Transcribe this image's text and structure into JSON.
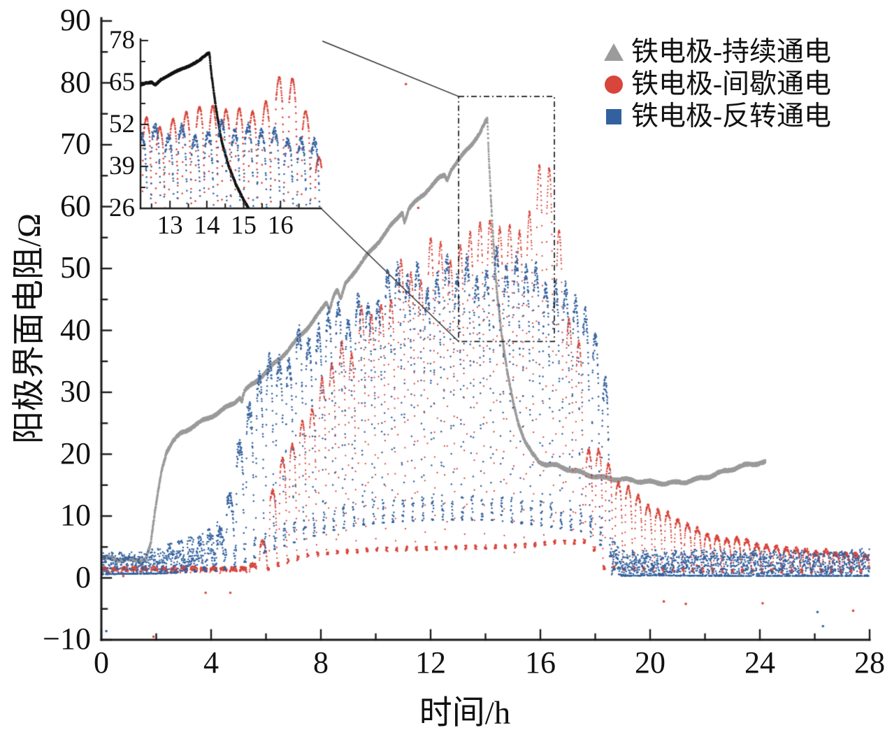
{
  "chart_data": {
    "type": "line",
    "title": "",
    "xlabel": "时间/h",
    "ylabel": "阳极界面电阻/Ω",
    "xlim": [
      0,
      28
    ],
    "ylim": [
      -10,
      90
    ],
    "grid": false,
    "x_ticks": {
      "major": [
        0,
        4,
        8,
        12,
        16,
        20,
        24,
        28
      ],
      "minor": [
        2,
        6,
        10,
        14,
        18,
        22,
        26
      ],
      "labels": [
        "0",
        "4",
        "8",
        "12",
        "16",
        "20",
        "24",
        "28"
      ]
    },
    "y_ticks": {
      "major": [
        -10,
        0,
        10,
        20,
        30,
        40,
        50,
        60,
        70,
        80,
        90
      ],
      "minor": [
        -5,
        5,
        15,
        25,
        35,
        45,
        55,
        65,
        75,
        85
      ],
      "labels": [
        "−10",
        "0",
        "10",
        "20",
        "30",
        "40",
        "50",
        "60",
        "70",
        "80",
        "90"
      ]
    },
    "legend": {
      "position": "top-right",
      "items": [
        {
          "label": "铁电极-持续通电",
          "marker": "triangle",
          "color": "#9b9b9b"
        },
        {
          "label": "铁电极-间歇通电",
          "marker": "circle",
          "color": "#d8453a"
        },
        {
          "label": "铁电极-反转通电",
          "marker": "square",
          "color": "#33619f"
        }
      ]
    },
    "series": [
      {
        "name": "铁电极-持续通电",
        "color": "#9b9b9b",
        "render": "dotline",
        "anchors": [
          [
            0,
            3.25
          ],
          [
            0.5,
            3.05
          ],
          [
            1.0,
            2.9
          ],
          [
            1.45,
            2.75
          ],
          [
            1.62,
            3.2
          ],
          [
            1.8,
            5.5
          ],
          [
            2.0,
            12
          ],
          [
            2.2,
            17.5
          ],
          [
            2.38,
            20.5
          ],
          [
            2.6,
            22
          ],
          [
            2.9,
            23.3
          ],
          [
            3.3,
            24.4
          ],
          [
            3.8,
            25.6
          ],
          [
            4.3,
            26.8
          ],
          [
            4.8,
            28.2
          ],
          [
            5.05,
            29.2
          ],
          [
            5.12,
            28.6
          ],
          [
            5.22,
            30.2
          ],
          [
            5.6,
            31.6
          ],
          [
            6.0,
            33.3
          ],
          [
            6.5,
            35.4
          ],
          [
            7.0,
            37.8
          ],
          [
            7.5,
            40.4
          ],
          [
            7.95,
            42.8
          ],
          [
            8.2,
            44.5
          ],
          [
            8.32,
            43.4
          ],
          [
            8.45,
            45.6
          ],
          [
            8.6,
            46.6
          ],
          [
            8.72,
            44.9
          ],
          [
            8.9,
            47.5
          ],
          [
            9.2,
            49.4
          ],
          [
            9.6,
            51.6
          ],
          [
            10.0,
            53.8
          ],
          [
            10.4,
            56.0
          ],
          [
            10.8,
            58.2
          ],
          [
            10.97,
            59.2
          ],
          [
            11.05,
            57.5
          ],
          [
            11.2,
            59.6
          ],
          [
            11.6,
            61.4
          ],
          [
            12.0,
            63.2
          ],
          [
            12.35,
            64.7
          ],
          [
            12.5,
            65.1
          ],
          [
            12.6,
            64.4
          ],
          [
            12.75,
            66.0
          ],
          [
            13.1,
            67.9
          ],
          [
            13.5,
            70.2
          ],
          [
            13.8,
            71.9
          ],
          [
            14.0,
            73.6
          ],
          [
            14.07,
            74.0
          ],
          [
            14.12,
            68.0
          ],
          [
            14.25,
            57.0
          ],
          [
            14.4,
            47.0
          ],
          [
            14.6,
            39.0
          ],
          [
            14.8,
            33.0
          ],
          [
            15.0,
            28.5
          ],
          [
            15.2,
            25.0
          ],
          [
            15.45,
            22.0
          ],
          [
            15.7,
            20.0
          ],
          [
            15.95,
            18.8
          ],
          [
            16.2,
            18.4
          ],
          [
            16.6,
            18.1
          ],
          [
            17.0,
            17.6
          ],
          [
            17.4,
            17.1
          ],
          [
            17.8,
            16.6
          ],
          [
            18.2,
            16.2
          ],
          [
            18.7,
            16.0
          ],
          [
            19.2,
            15.8
          ],
          [
            19.7,
            15.6
          ],
          [
            20.2,
            15.4
          ],
          [
            20.7,
            15.3
          ],
          [
            21.2,
            15.5
          ],
          [
            21.7,
            15.9
          ],
          [
            22.2,
            16.5
          ],
          [
            22.7,
            17.2
          ],
          [
            23.2,
            17.9
          ],
          [
            23.6,
            18.3
          ],
          [
            24.0,
            18.6
          ],
          [
            24.2,
            18.7
          ]
        ]
      },
      {
        "name": "铁电极-间歇通电",
        "color": "#d8453a",
        "render": "cycles",
        "period": 0.36,
        "phase": 0,
        "shape": "red",
        "band": 0.45,
        "peaks": [
          [
            0,
            1.5
          ],
          [
            5.2,
            1.5
          ],
          [
            5.6,
            2.2
          ],
          [
            5.9,
            5
          ],
          [
            6.1,
            9
          ],
          [
            6.3,
            14
          ],
          [
            6.5,
            17
          ],
          [
            6.9,
            21
          ],
          [
            7.3,
            24
          ],
          [
            7.7,
            28
          ],
          [
            8.1,
            31
          ],
          [
            8.5,
            34
          ],
          [
            8.9,
            37
          ],
          [
            9.3,
            39.5
          ],
          [
            9.7,
            42
          ],
          [
            10.1,
            44.5
          ],
          [
            10.5,
            46.5
          ],
          [
            10.9,
            48.5
          ],
          [
            11.3,
            50.2
          ],
          [
            11.7,
            51.5
          ],
          [
            12.1,
            52.5
          ],
          [
            12.5,
            53.5
          ],
          [
            12.9,
            54.5
          ],
          [
            13.3,
            55.3
          ],
          [
            13.7,
            56.2
          ],
          [
            14.1,
            57
          ],
          [
            14.5,
            57.8
          ],
          [
            14.9,
            58.5
          ],
          [
            15.3,
            59.5
          ],
          [
            15.7,
            60.8
          ],
          [
            16.0,
            61.8
          ],
          [
            16.3,
            62.8
          ],
          [
            16.55,
            60
          ],
          [
            16.75,
            52
          ],
          [
            17.05,
            45
          ],
          [
            17.4,
            41.5
          ],
          [
            17.6,
            38
          ],
          [
            17.8,
            22
          ],
          [
            18.1,
            20
          ],
          [
            18.45,
            18.5
          ],
          [
            18.8,
            16.5
          ],
          [
            19.15,
            14.8
          ],
          [
            19.5,
            13.5
          ],
          [
            20.1,
            11.4
          ],
          [
            20.8,
            9.6
          ],
          [
            21.5,
            8.3
          ],
          [
            22.2,
            7.3
          ],
          [
            22.9,
            6.5
          ],
          [
            23.6,
            5.9
          ],
          [
            24.3,
            5.3
          ],
          [
            25.0,
            4.9
          ],
          [
            25.7,
            4.5
          ],
          [
            26.4,
            4.2
          ],
          [
            27.1,
            3.9
          ],
          [
            27.8,
            3.7
          ],
          [
            28,
            3.6
          ]
        ],
        "valleys": [
          [
            0,
            0.85
          ],
          [
            5.2,
            0.9
          ],
          [
            6.0,
            1.5
          ],
          [
            6.6,
            2.4
          ],
          [
            7.2,
            3.2
          ],
          [
            8,
            3.6
          ],
          [
            10,
            4
          ],
          [
            14,
            4.2
          ],
          [
            16,
            4.6
          ],
          [
            17,
            5.2
          ],
          [
            17.7,
            5.5
          ],
          [
            18.1,
            1.4
          ],
          [
            20,
            1.2
          ],
          [
            24,
            1.1
          ],
          [
            28,
            1.0
          ]
        ]
      },
      {
        "name": "铁电极-反转通电",
        "color": "#33619f",
        "render": "cycles",
        "period": 0.36,
        "phase": 0.13,
        "shape": "blue",
        "band": 3.2,
        "peaks": [
          [
            0,
            1.7
          ],
          [
            1.2,
            1.6
          ],
          [
            2.0,
            2.2
          ],
          [
            2.4,
            2.9
          ],
          [
            2.8,
            3.5
          ],
          [
            3.2,
            4.2
          ],
          [
            3.6,
            4.9
          ],
          [
            4.0,
            5.8
          ],
          [
            4.3,
            7.5
          ],
          [
            4.55,
            11
          ],
          [
            4.8,
            16
          ],
          [
            5.05,
            21
          ],
          [
            5.3,
            26
          ],
          [
            5.55,
            29.5
          ],
          [
            5.8,
            32
          ],
          [
            6.1,
            34
          ],
          [
            6.45,
            35.8
          ],
          [
            6.8,
            37.2
          ],
          [
            7.15,
            38.5
          ],
          [
            7.5,
            40
          ],
          [
            7.85,
            41.2
          ],
          [
            8.2,
            42.3
          ],
          [
            8.55,
            43.2
          ],
          [
            8.9,
            44
          ],
          [
            9.25,
            44.8
          ],
          [
            9.6,
            45.5
          ],
          [
            9.95,
            46.2
          ],
          [
            10.3,
            47
          ],
          [
            10.65,
            47.8
          ],
          [
            11.0,
            48.5
          ],
          [
            11.35,
            49
          ],
          [
            11.7,
            49.5
          ],
          [
            12.05,
            50
          ],
          [
            12.4,
            50.3
          ],
          [
            12.75,
            50.6
          ],
          [
            13.1,
            50.9
          ],
          [
            13.45,
            51
          ],
          [
            13.8,
            51.2
          ],
          [
            14.15,
            51.6
          ],
          [
            14.5,
            52.3
          ],
          [
            14.85,
            51.5
          ],
          [
            15.2,
            52
          ],
          [
            15.55,
            52
          ],
          [
            15.9,
            50.5
          ],
          [
            16.25,
            49
          ],
          [
            16.6,
            47.5
          ],
          [
            16.95,
            46
          ],
          [
            17.3,
            44.5
          ],
          [
            17.65,
            42.5
          ],
          [
            18.0,
            40
          ],
          [
            18.25,
            37
          ],
          [
            18.45,
            30
          ],
          [
            18.6,
            15
          ],
          [
            18.75,
            4
          ],
          [
            19.0,
            2.0
          ],
          [
            19.5,
            1.9
          ],
          [
            20,
            2.0
          ],
          [
            21,
            1.9
          ],
          [
            22,
            2.1
          ],
          [
            23,
            1.9
          ],
          [
            24,
            2.0
          ],
          [
            25,
            1.9
          ],
          [
            26,
            2.0
          ],
          [
            26.5,
            1.7
          ],
          [
            27,
            1.9
          ],
          [
            27.5,
            2.1
          ],
          [
            28,
            2.3
          ]
        ],
        "valleys": [
          [
            0,
            1.2
          ],
          [
            2,
            1.3
          ],
          [
            4.2,
            1.8
          ],
          [
            4.6,
            2.2
          ],
          [
            5,
            3
          ],
          [
            6,
            5
          ],
          [
            7,
            6.5
          ],
          [
            8,
            8
          ],
          [
            9,
            9
          ],
          [
            10,
            9.5
          ],
          [
            12,
            10
          ],
          [
            14,
            10
          ],
          [
            16,
            9
          ],
          [
            17.5,
            8
          ],
          [
            18.3,
            5
          ],
          [
            18.8,
            0.9
          ],
          [
            20,
            1.0
          ],
          [
            24,
            0.9
          ],
          [
            28,
            0.9
          ]
        ]
      }
    ],
    "outliers": [
      {
        "x": 0.18,
        "y": -8.6,
        "color": "#33619f"
      },
      {
        "x": 0.8,
        "y": 0.3,
        "color": "#d8453a"
      },
      {
        "x": 1.9,
        "y": -9.5,
        "color": "#d8453a"
      },
      {
        "x": 3.8,
        "y": -2.4,
        "color": "#d8453a"
      },
      {
        "x": 4.7,
        "y": -2.4,
        "color": "#d8453a"
      },
      {
        "x": 11.1,
        "y": 79.8,
        "color": "#d8453a"
      },
      {
        "x": 11.55,
        "y": 59.8,
        "color": "#d8453a"
      },
      {
        "x": 20.5,
        "y": -3.8,
        "color": "#d8453a"
      },
      {
        "x": 21.3,
        "y": -4.2,
        "color": "#d8453a"
      },
      {
        "x": 21.7,
        "y": 2.0,
        "color": "#d8453a"
      },
      {
        "x": 24.1,
        "y": -4.1,
        "color": "#d8453a"
      },
      {
        "x": 26.1,
        "y": -5.5,
        "color": "#33619f"
      },
      {
        "x": 26.3,
        "y": -7.8,
        "color": "#33619f"
      },
      {
        "x": 27.4,
        "y": -5.3,
        "color": "#d8453a"
      }
    ],
    "inset": {
      "xlim": [
        12.2,
        17.1
      ],
      "ylim": [
        26,
        78
      ],
      "x_ticks": [
        13,
        14,
        15,
        16
      ],
      "x_tick_labels": [
        "13",
        "14",
        "15",
        "16"
      ],
      "x_minor": [
        12.5,
        13.5,
        14.5,
        15.5,
        16.5
      ],
      "y_ticks": [
        26,
        39,
        52,
        65,
        78
      ],
      "y_tick_labels": [
        "26",
        "39",
        "52",
        "65",
        "78"
      ],
      "y_minor": [
        32.5,
        45.5,
        58.5,
        71.5
      ],
      "continuous_line_color": "#141414"
    },
    "callout_box": {
      "x": [
        13.02,
        16.51
      ],
      "y": [
        38.2,
        77.8
      ]
    },
    "axis_color": "#1a1a1a"
  }
}
